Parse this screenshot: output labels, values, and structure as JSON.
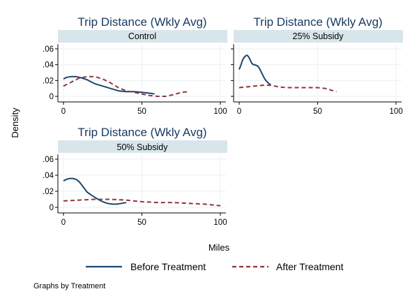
{
  "chart_data": {
    "type": "line",
    "ylabel": "Density",
    "xlabel": "Miles",
    "note": "Graphs by Treatment",
    "xlim": [
      0,
      100
    ],
    "ylim": [
      0,
      0.06
    ],
    "x_ticks": [
      0,
      50,
      100
    ],
    "y_ticks": [
      0,
      0.02,
      0.04,
      0.06
    ],
    "x_tick_labels": [
      "0",
      "50",
      "100"
    ],
    "y_tick_labels": [
      "0",
      ".02",
      ".04",
      ".06"
    ],
    "grid": true,
    "legend": {
      "position": "bottom",
      "entries": [
        {
          "name": "Before Treatment",
          "color": "#1a476f",
          "dash": "solid"
        },
        {
          "name": "After Treatment",
          "color": "#90353b",
          "dash": "dashed"
        }
      ]
    },
    "panels": [
      {
        "title": "Trip Distance (Wkly Avg)",
        "strip": "Control",
        "series": [
          {
            "name": "Before Treatment",
            "x": [
              0,
              2,
              5,
              8,
              12,
              15,
              20,
              25,
              30,
              35,
              40,
              45,
              50,
              55,
              58
            ],
            "y": [
              0.022,
              0.024,
              0.025,
              0.025,
              0.023,
              0.021,
              0.016,
              0.013,
              0.01,
              0.007,
              0.006,
              0.006,
              0.005,
              0.004,
              0.003
            ]
          },
          {
            "name": "After Treatment",
            "x": [
              0,
              5,
              10,
              15,
              20,
              25,
              30,
              35,
              40,
              45,
              50,
              55,
              60,
              65,
              70,
              75,
              80
            ],
            "y": [
              0.013,
              0.018,
              0.023,
              0.025,
              0.025,
              0.022,
              0.017,
              0.011,
              0.007,
              0.005,
              0.003,
              0.001,
              0.0,
              0.0,
              0.002,
              0.005,
              0.006
            ]
          }
        ]
      },
      {
        "title": "Trip Distance (Wkly Avg)",
        "strip": "25% Subsidy",
        "series": [
          {
            "name": "Before Treatment",
            "x": [
              0,
              1,
              2,
              3,
              4,
              5,
              6,
              7,
              8,
              9,
              10,
              11,
              12,
              13,
              14,
              15,
              16,
              17,
              18,
              19,
              20
            ],
            "y": [
              0.034,
              0.039,
              0.045,
              0.049,
              0.051,
              0.052,
              0.05,
              0.046,
              0.042,
              0.04,
              0.04,
              0.039,
              0.038,
              0.035,
              0.031,
              0.027,
              0.023,
              0.02,
              0.018,
              0.016,
              0.015
            ]
          },
          {
            "name": "After Treatment",
            "x": [
              0,
              5,
              10,
              15,
              20,
              25,
              30,
              35,
              40,
              45,
              50,
              55,
              60,
              62
            ],
            "y": [
              0.011,
              0.012,
              0.013,
              0.014,
              0.014,
              0.012,
              0.011,
              0.011,
              0.011,
              0.011,
              0.011,
              0.01,
              0.007,
              0.006
            ]
          }
        ]
      },
      {
        "title": "Trip Distance (Wkly Avg)",
        "strip": "50% Subsidy",
        "series": [
          {
            "name": "Before Treatment",
            "x": [
              0,
              2,
              4,
              6,
              8,
              10,
              12,
              15,
              18,
              22,
              25,
              28,
              31,
              34,
              37,
              40
            ],
            "y": [
              0.033,
              0.035,
              0.036,
              0.036,
              0.035,
              0.032,
              0.027,
              0.019,
              0.015,
              0.01,
              0.007,
              0.005,
              0.004,
              0.004,
              0.005,
              0.006
            ]
          },
          {
            "name": "After Treatment",
            "x": [
              0,
              10,
              20,
              30,
              40,
              50,
              60,
              70,
              80,
              90,
              100
            ],
            "y": [
              0.008,
              0.009,
              0.01,
              0.01,
              0.009,
              0.007,
              0.006,
              0.006,
              0.005,
              0.004,
              0.002
            ]
          }
        ]
      }
    ]
  }
}
